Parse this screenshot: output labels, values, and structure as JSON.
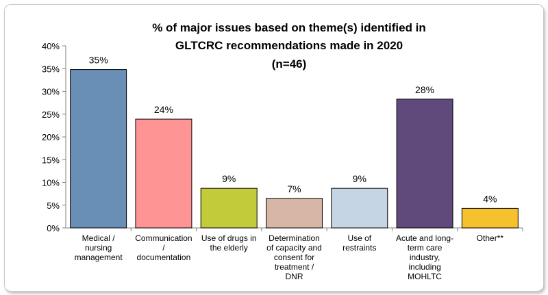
{
  "chart_data": {
    "type": "bar",
    "title_lines": [
      "% of major issues based on theme(s) identified in",
      "GLTCRC recommendations made in 2020",
      "(n=46)"
    ],
    "categories": [
      [
        "Medical /",
        "nursing",
        "management"
      ],
      [
        "Communication",
        "/",
        "documentation"
      ],
      [
        "Use of drugs in",
        "the elderly"
      ],
      [
        "Determination",
        "of capacity and",
        "consent for",
        "treatment /",
        "DNR"
      ],
      [
        "Use of",
        "restraints"
      ],
      [
        "Acute and long-",
        "term care",
        "industry,",
        "including",
        "MOHLTC"
      ],
      [
        "Other**"
      ]
    ],
    "values": [
      35,
      24,
      9,
      7,
      9,
      28,
      4
    ],
    "data_labels": [
      "35%",
      "24%",
      "9%",
      "7%",
      "9%",
      "28%",
      "4%"
    ],
    "bar_heights": [
      34.8,
      23.9,
      8.7,
      6.5,
      8.7,
      28.3,
      4.3
    ],
    "colors": [
      "#6a8fb6",
      "#ff9494",
      "#c2cc3a",
      "#d7b5a7",
      "#c6d5e3",
      "#604a7b",
      "#f5c12d"
    ],
    "ylim": [
      0,
      40
    ],
    "yticks": [
      "0%",
      "5%",
      "10%",
      "15%",
      "20%",
      "25%",
      "30%",
      "35%",
      "40%"
    ],
    "legend": "none",
    "grid": false
  }
}
